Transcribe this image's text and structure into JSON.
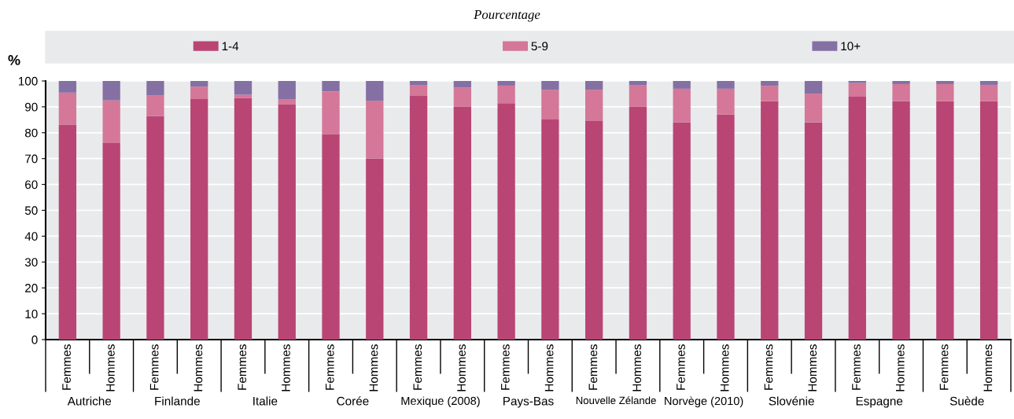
{
  "chart_data": {
    "type": "bar",
    "stacked": true,
    "subtitle": "Pourcentage",
    "ylabel": "%",
    "categories": [
      "Femmes",
      "Hommes",
      "Femmes",
      "Hommes",
      "Femmes",
      "Hommes",
      "Femmes",
      "Hommes",
      "Femmes",
      "Hommes",
      "Femmes",
      "Hommes",
      "Femmes",
      "Hommes",
      "Femmes",
      "Hommes",
      "Femmes",
      "Hommes",
      "Femmes",
      "Hommes",
      "Femmes",
      "Hommes"
    ],
    "annotations": [
      "Autriche",
      "Finlande",
      "Italie",
      "Corée",
      "Mexique (2008)",
      "Pays-Bas",
      "Nouvelle Zélande",
      "Norvège (2010)",
      "Slovénie",
      "Espagne",
      "Suède"
    ],
    "series": [
      {
        "name": "1-4",
        "color": "#b94575",
        "values": [
          83,
          76,
          86.5,
          93,
          93.5,
          91,
          79.5,
          70,
          94.2,
          90,
          91.4,
          85.1,
          84.5,
          90,
          84,
          87,
          92.2,
          84,
          93.9,
          92.2,
          92.2,
          92.2
        ]
      },
      {
        "name": "5-9",
        "color": "#d47798",
        "values": [
          12.5,
          16.5,
          8,
          4.8,
          1.2,
          2,
          16.5,
          22.3,
          4.1,
          7.5,
          6.8,
          11.5,
          12.1,
          8.3,
          13,
          10,
          5.9,
          11.1,
          5.3,
          6.6,
          6.6,
          6.3
        ]
      },
      {
        "name": "10+",
        "color": "#8570a4",
        "values": [
          4.5,
          7.5,
          5.5,
          2.2,
          5.3,
          7,
          4,
          7.7,
          1.7,
          2.5,
          1.8,
          3.4,
          3.4,
          1.7,
          3,
          3,
          1.9,
          4.9,
          0.8,
          1.2,
          1.2,
          1.5
        ]
      }
    ],
    "ylim": [
      0,
      100
    ],
    "yticks": [
      0,
      10,
      20,
      30,
      40,
      50,
      60,
      70,
      80,
      90,
      100
    ],
    "grid": "y",
    "legend": "top"
  }
}
